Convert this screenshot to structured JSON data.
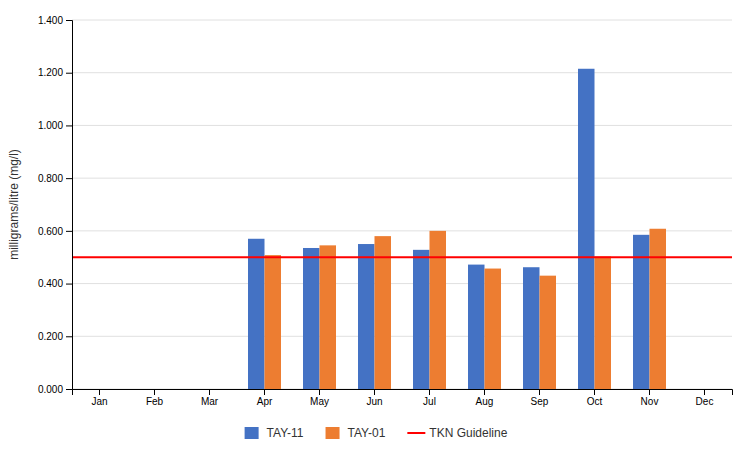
{
  "chart_data": {
    "type": "bar",
    "ylabel": "milligrams/litre (mg/l)",
    "categories": [
      "Jan",
      "Feb",
      "Mar",
      "Apr",
      "May",
      "Jun",
      "Jul",
      "Aug",
      "Sep",
      "Oct",
      "Nov",
      "Dec"
    ],
    "series": [
      {
        "name": "TAY-11",
        "color": "#4472C4",
        "values": [
          null,
          null,
          null,
          0.57,
          0.535,
          0.55,
          0.528,
          0.472,
          0.462,
          1.215,
          0.585,
          null
        ]
      },
      {
        "name": "TAY-01",
        "color": "#ED7D31",
        "values": [
          null,
          null,
          null,
          0.508,
          0.545,
          0.58,
          0.6,
          0.457,
          0.43,
          0.503,
          0.608,
          null
        ]
      }
    ],
    "guideline": {
      "name": "TKN Guideline",
      "value": 0.5,
      "color": "#FF0000"
    },
    "ylim": [
      0.0,
      1.4
    ],
    "yticks": [
      {
        "value": 0.0,
        "label": "0.000"
      },
      {
        "value": 0.2,
        "label": "0.200"
      },
      {
        "value": 0.4,
        "label": "0.400"
      },
      {
        "value": 0.6,
        "label": "0.600"
      },
      {
        "value": 0.8,
        "label": "0.800"
      },
      {
        "value": 1.0,
        "label": "1.000"
      },
      {
        "value": 1.2,
        "label": "1.200"
      },
      {
        "value": 1.4,
        "label": "1.400"
      }
    ],
    "grid": true,
    "legend": "bottom"
  }
}
